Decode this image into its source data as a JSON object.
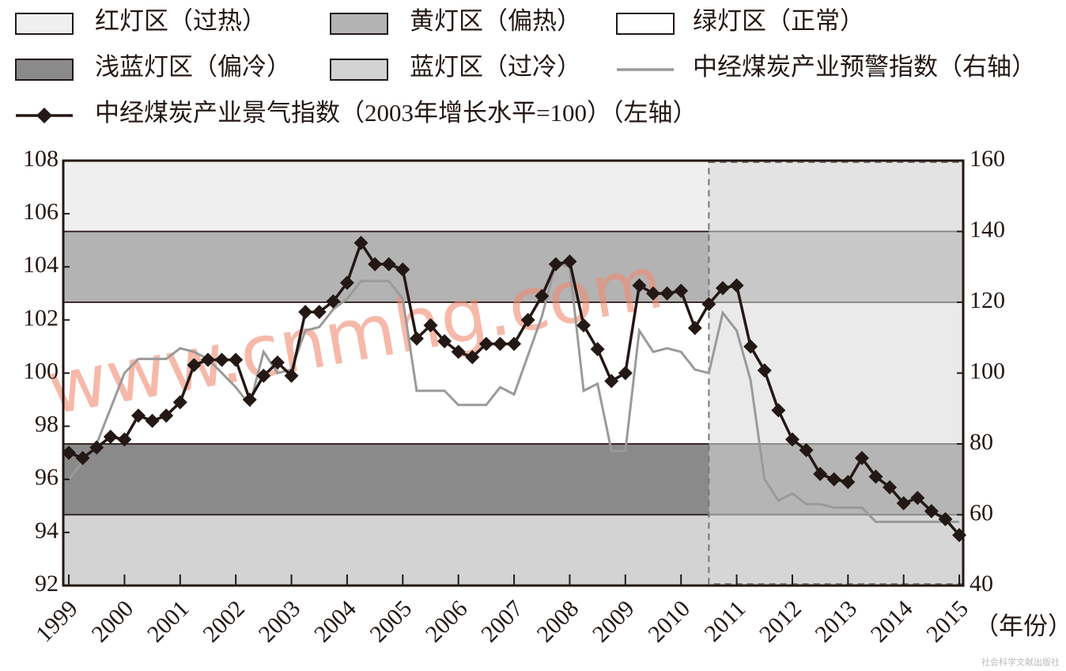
{
  "chart_data": {
    "type": "line",
    "x_label": "（年份）",
    "watermark": "www.cnmhg.com",
    "publisher": "社会科学文献出版社",
    "zones": [
      {
        "name": "红灯区（过热）",
        "color": "#efefef",
        "range": [
          140,
          160
        ]
      },
      {
        "name": "黄灯区（偏热）",
        "color": "#b3b3b3",
        "range": [
          120,
          140
        ]
      },
      {
        "name": "绿灯区（正常）",
        "color": "#ffffff",
        "range": [
          80,
          120
        ]
      },
      {
        "name": "浅蓝灯区（偏冷）",
        "color": "#8a8a8a",
        "range": [
          60,
          80
        ]
      },
      {
        "name": "蓝灯区（过冷）",
        "color": "#d3d3d3",
        "range": [
          40,
          60
        ]
      }
    ],
    "shaded_xlim": [
      2010.5,
      2015.07
    ],
    "x": [
      1999,
      1999.25,
      1999.5,
      1999.75,
      2000,
      2000.25,
      2000.5,
      2000.75,
      2001,
      2001.25,
      2001.5,
      2001.75,
      2002,
      2002.25,
      2002.5,
      2002.75,
      2003,
      2003.25,
      2003.5,
      2003.75,
      2004,
      2004.25,
      2004.5,
      2004.75,
      2005,
      2005.25,
      2005.5,
      2005.75,
      2006,
      2006.25,
      2006.5,
      2006.75,
      2007,
      2007.25,
      2007.5,
      2007.75,
      2008,
      2008.25,
      2008.5,
      2008.75,
      2009,
      2009.25,
      2009.5,
      2009.75,
      2010,
      2010.25,
      2010.5,
      2010.75,
      2011,
      2011.25,
      2011.5,
      2011.75,
      2012,
      2012.25,
      2012.5,
      2012.75,
      2013,
      2013.25,
      2013.5,
      2013.75,
      2014,
      2014.25,
      2014.5,
      2014.75,
      2015
    ],
    "series": [
      {
        "name": "中经煤炭产业预警指数（右轴）",
        "color": "#9a9a9a",
        "axis": "y2",
        "marker": "none",
        "values": [
          70,
          75,
          80,
          90,
          100,
          104,
          104,
          104,
          107,
          106,
          104,
          100,
          96,
          91,
          106,
          100,
          101,
          112,
          113,
          118,
          121,
          126,
          126,
          126,
          121,
          95,
          95,
          95,
          91,
          91,
          91,
          96,
          94,
          105,
          116,
          131,
          130,
          95,
          97,
          78,
          78,
          112,
          106,
          107,
          106,
          101,
          100,
          117,
          112,
          98,
          70,
          64,
          66,
          63,
          63,
          62,
          62,
          62,
          58,
          58,
          58,
          58,
          58,
          58,
          58
        ]
      },
      {
        "name": "中经煤炭产业景气指数（2003年增长水平=100）（左轴）",
        "color": "#231815",
        "axis": "y",
        "marker": "diamond",
        "values": [
          97.0,
          96.8,
          97.2,
          97.6,
          97.5,
          98.4,
          98.2,
          98.4,
          98.9,
          100.3,
          100.5,
          100.5,
          100.5,
          99.0,
          99.9,
          100.4,
          99.9,
          102.3,
          102.3,
          102.7,
          103.4,
          104.9,
          104.1,
          104.1,
          103.9,
          101.3,
          101.8,
          101.2,
          100.8,
          100.6,
          101.1,
          101.1,
          101.1,
          102.0,
          102.9,
          104.1,
          104.2,
          101.8,
          100.9,
          99.7,
          100.0,
          103.3,
          103.0,
          103.0,
          103.1,
          101.7,
          102.6,
          103.2,
          103.3,
          101.0,
          100.1,
          98.6,
          97.5,
          97.1,
          96.2,
          96.0,
          95.9,
          96.8,
          96.1,
          95.7,
          95.1,
          95.3,
          94.8,
          94.5,
          93.9
        ]
      }
    ],
    "xlim": [
      1998.9,
      2015.07
    ],
    "xticks": [
      1999,
      2000,
      2001,
      2002,
      2003,
      2004,
      2005,
      2006,
      2007,
      2008,
      2009,
      2010,
      2011,
      2012,
      2013,
      2014,
      2015
    ],
    "ylim": [
      92,
      108
    ],
    "yticks": [
      92,
      94,
      96,
      98,
      100,
      102,
      104,
      106,
      108
    ],
    "y2lim": [
      40,
      160
    ],
    "y2ticks": [
      40,
      60,
      80,
      100,
      120,
      140,
      160
    ]
  }
}
